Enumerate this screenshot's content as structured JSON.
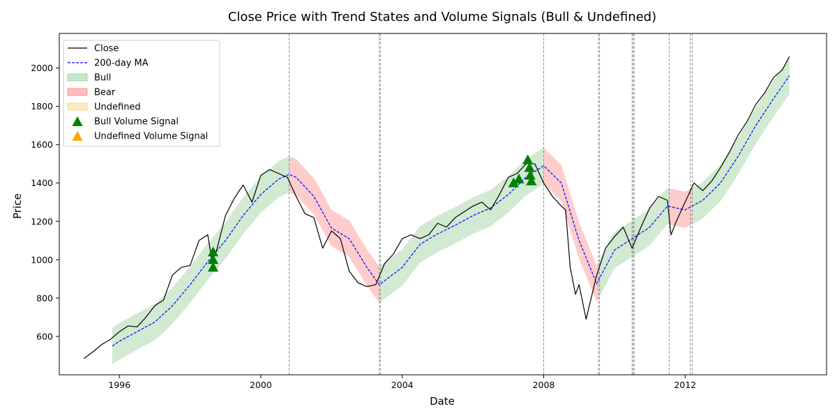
{
  "chart_data": {
    "type": "line",
    "title": "Close Price with Trend States and Volume Signals (Bull & Undefined)",
    "xlabel": "Date",
    "ylabel": "Price",
    "xlim": [
      1994.3,
      2016.0
    ],
    "ylim": [
      400,
      2180
    ],
    "x_ticks": [
      {
        "value": 1996,
        "label": "1996"
      },
      {
        "value": 2000,
        "label": "2000"
      },
      {
        "value": 2004,
        "label": "2004"
      },
      {
        "value": 2008,
        "label": "2008"
      },
      {
        "value": 2012,
        "label": "2012"
      }
    ],
    "y_ticks": [
      {
        "value": 600,
        "label": "600"
      },
      {
        "value": 800,
        "label": "800"
      },
      {
        "value": 1000,
        "label": "1000"
      },
      {
        "value": 1200,
        "label": "1200"
      },
      {
        "value": 1400,
        "label": "1400"
      },
      {
        "value": 1600,
        "label": "1600"
      },
      {
        "value": 1800,
        "label": "1800"
      },
      {
        "value": 2000,
        "label": "2000"
      }
    ],
    "grid": false,
    "legend_position": "top-left",
    "legend": [
      {
        "label": "Close",
        "kind": "line",
        "color": "#000000"
      },
      {
        "label": "200-day MA",
        "kind": "dashed-line",
        "color": "#0000ff"
      },
      {
        "label": "Bull",
        "kind": "patch",
        "color": "#2ca02c"
      },
      {
        "label": "Bear",
        "kind": "patch",
        "color": "#ff0000"
      },
      {
        "label": "Undefined",
        "kind": "patch",
        "color": "#ffa500"
      },
      {
        "label": "Bull Volume Signal",
        "kind": "triangle",
        "color": "#008000"
      },
      {
        "label": "Undefined Volume Signal",
        "kind": "triangle",
        "color": "#ffa500"
      }
    ],
    "colors": {
      "close": "#000000",
      "ma": "#0000ff",
      "bull": "#2ca02c",
      "bear": "#ff0000",
      "undefined": "#ffa500",
      "bull_signal": "#008000",
      "vline": "#808080"
    },
    "close_series": [
      [
        1995.0,
        485
      ],
      [
        1995.25,
        520
      ],
      [
        1995.5,
        558
      ],
      [
        1995.75,
        585
      ],
      [
        1996.0,
        625
      ],
      [
        1996.25,
        655
      ],
      [
        1996.5,
        650
      ],
      [
        1996.75,
        700
      ],
      [
        1997.0,
        760
      ],
      [
        1997.25,
        790
      ],
      [
        1997.5,
        920
      ],
      [
        1997.75,
        960
      ],
      [
        1998.0,
        970
      ],
      [
        1998.25,
        1100
      ],
      [
        1998.5,
        1130
      ],
      [
        1998.62,
        990
      ],
      [
        1998.75,
        1050
      ],
      [
        1999.0,
        1230
      ],
      [
        1999.25,
        1320
      ],
      [
        1999.5,
        1390
      ],
      [
        1999.75,
        1300
      ],
      [
        2000.0,
        1440
      ],
      [
        2000.25,
        1470
      ],
      [
        2000.5,
        1450
      ],
      [
        2000.75,
        1430
      ],
      [
        2001.0,
        1330
      ],
      [
        2001.25,
        1240
      ],
      [
        2001.5,
        1220
      ],
      [
        2001.75,
        1060
      ],
      [
        2002.0,
        1150
      ],
      [
        2002.25,
        1110
      ],
      [
        2002.5,
        940
      ],
      [
        2002.75,
        880
      ],
      [
        2003.0,
        860
      ],
      [
        2003.25,
        870
      ],
      [
        2003.5,
        980
      ],
      [
        2003.75,
        1030
      ],
      [
        2004.0,
        1110
      ],
      [
        2004.25,
        1130
      ],
      [
        2004.5,
        1110
      ],
      [
        2004.75,
        1130
      ],
      [
        2005.0,
        1190
      ],
      [
        2005.25,
        1170
      ],
      [
        2005.5,
        1220
      ],
      [
        2005.75,
        1250
      ],
      [
        2006.0,
        1280
      ],
      [
        2006.25,
        1300
      ],
      [
        2006.5,
        1260
      ],
      [
        2006.75,
        1340
      ],
      [
        2007.0,
        1430
      ],
      [
        2007.25,
        1450
      ],
      [
        2007.5,
        1500
      ],
      [
        2007.75,
        1500
      ],
      [
        2008.0,
        1400
      ],
      [
        2008.25,
        1330
      ],
      [
        2008.5,
        1280
      ],
      [
        2008.62,
        1260
      ],
      [
        2008.75,
        960
      ],
      [
        2008.9,
        820
      ],
      [
        2009.0,
        870
      ],
      [
        2009.2,
        690
      ],
      [
        2009.5,
        920
      ],
      [
        2009.75,
        1060
      ],
      [
        2010.0,
        1120
      ],
      [
        2010.25,
        1170
      ],
      [
        2010.5,
        1060
      ],
      [
        2010.75,
        1170
      ],
      [
        2011.0,
        1270
      ],
      [
        2011.25,
        1330
      ],
      [
        2011.5,
        1310
      ],
      [
        2011.6,
        1130
      ],
      [
        2011.75,
        1200
      ],
      [
        2012.0,
        1300
      ],
      [
        2012.25,
        1400
      ],
      [
        2012.5,
        1360
      ],
      [
        2012.75,
        1410
      ],
      [
        2013.0,
        1480
      ],
      [
        2013.25,
        1560
      ],
      [
        2013.5,
        1650
      ],
      [
        2013.75,
        1720
      ],
      [
        2014.0,
        1810
      ],
      [
        2014.25,
        1870
      ],
      [
        2014.5,
        1950
      ],
      [
        2014.75,
        1990
      ],
      [
        2014.95,
        2060
      ]
    ],
    "ma_series": [
      [
        1995.8,
        550
      ],
      [
        1996.0,
        575
      ],
      [
        1996.5,
        625
      ],
      [
        1997.0,
        675
      ],
      [
        1997.5,
        760
      ],
      [
        1998.0,
        870
      ],
      [
        1998.5,
        990
      ],
      [
        1999.0,
        1100
      ],
      [
        1999.5,
        1230
      ],
      [
        2000.0,
        1340
      ],
      [
        2000.5,
        1420
      ],
      [
        2000.8,
        1445
      ],
      [
        2001.0,
        1430
      ],
      [
        2001.5,
        1330
      ],
      [
        2002.0,
        1165
      ],
      [
        2002.5,
        1110
      ],
      [
        2003.0,
        960
      ],
      [
        2003.35,
        870
      ],
      [
        2004.0,
        960
      ],
      [
        2004.5,
        1080
      ],
      [
        2005.0,
        1135
      ],
      [
        2005.5,
        1180
      ],
      [
        2006.0,
        1230
      ],
      [
        2006.5,
        1270
      ],
      [
        2007.0,
        1340
      ],
      [
        2007.5,
        1430
      ],
      [
        2008.0,
        1490
      ],
      [
        2008.5,
        1400
      ],
      [
        2009.0,
        1100
      ],
      [
        2009.5,
        875
      ],
      [
        2010.0,
        1050
      ],
      [
        2010.5,
        1110
      ],
      [
        2011.0,
        1170
      ],
      [
        2011.5,
        1280
      ],
      [
        2012.0,
        1260
      ],
      [
        2012.5,
        1310
      ],
      [
        2013.0,
        1400
      ],
      [
        2013.5,
        1540
      ],
      [
        2014.0,
        1700
      ],
      [
        2014.5,
        1840
      ],
      [
        2014.95,
        1960
      ]
    ],
    "regimes": [
      {
        "state": "Bull",
        "x0": 1995.8,
        "x1": 2000.8
      },
      {
        "state": "Bear",
        "x0": 2000.8,
        "x1": 2003.35
      },
      {
        "state": "Bull",
        "x0": 2003.35,
        "x1": 2008.0
      },
      {
        "state": "Bear",
        "x0": 2008.0,
        "x1": 2009.55
      },
      {
        "state": "Bull",
        "x0": 2009.55,
        "x1": 2011.55
      },
      {
        "state": "Bear",
        "x0": 2011.55,
        "x1": 2012.2
      },
      {
        "state": "Bull",
        "x0": 2012.2,
        "x1": 2014.95
      }
    ],
    "band_half_width": 95,
    "vlines": [
      2000.8,
      2003.35,
      2003.38,
      2008.0,
      2009.55,
      2009.58,
      2010.5,
      2010.53,
      2010.56,
      2011.55,
      2012.15,
      2012.2
    ],
    "bull_volume_signals": [
      [
        1998.65,
        960
      ],
      [
        1998.65,
        1000
      ],
      [
        1998.65,
        1040
      ],
      [
        2007.15,
        1400
      ],
      [
        2007.3,
        1420
      ],
      [
        2007.55,
        1520
      ],
      [
        2007.6,
        1480
      ],
      [
        2007.62,
        1440
      ],
      [
        2007.65,
        1410
      ]
    ],
    "undefined_volume_signals": []
  }
}
